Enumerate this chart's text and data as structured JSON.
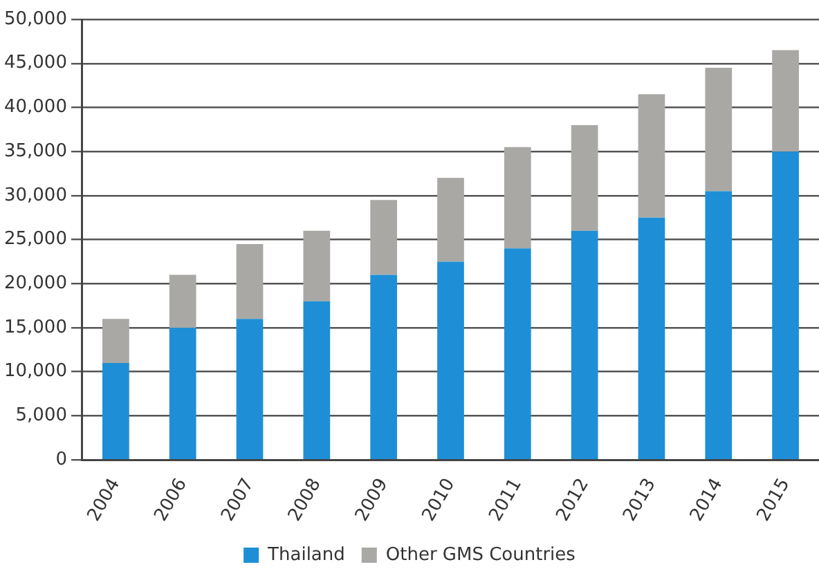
{
  "chart_data": {
    "type": "bar",
    "stacked": true,
    "categories": [
      "2004",
      "2006",
      "2007",
      "2008",
      "2009",
      "2010",
      "2011",
      "2012",
      "2013",
      "2014",
      "2015"
    ],
    "series": [
      {
        "name": "Thailand",
        "color": "#1e8fd6",
        "values": [
          11000,
          15000,
          16000,
          18000,
          21000,
          22500,
          24000,
          26000,
          27500,
          30500,
          35000
        ]
      },
      {
        "name": "Other GMS Countries",
        "color": "#a9a8a4",
        "values": [
          5000,
          6000,
          8500,
          8000,
          8500,
          9500,
          11500,
          12000,
          14000,
          14000,
          11500
        ]
      }
    ],
    "ylim": [
      0,
      50000
    ],
    "yticks": [
      {
        "value": 0,
        "label": "0"
      },
      {
        "value": 5000,
        "label": "5,000"
      },
      {
        "value": 10000,
        "label": "10,000"
      },
      {
        "value": 15000,
        "label": "15,000"
      },
      {
        "value": 20000,
        "label": "20,000"
      },
      {
        "value": 25000,
        "label": "25,000"
      },
      {
        "value": 30000,
        "label": "30,000"
      },
      {
        "value": 35000,
        "label": "35,000"
      },
      {
        "value": 40000,
        "label": "40,000"
      },
      {
        "value": 45000,
        "label": "45,000"
      },
      {
        "value": 50000,
        "label": "50,000"
      }
    ],
    "grid": "y",
    "legend": "bottom"
  }
}
